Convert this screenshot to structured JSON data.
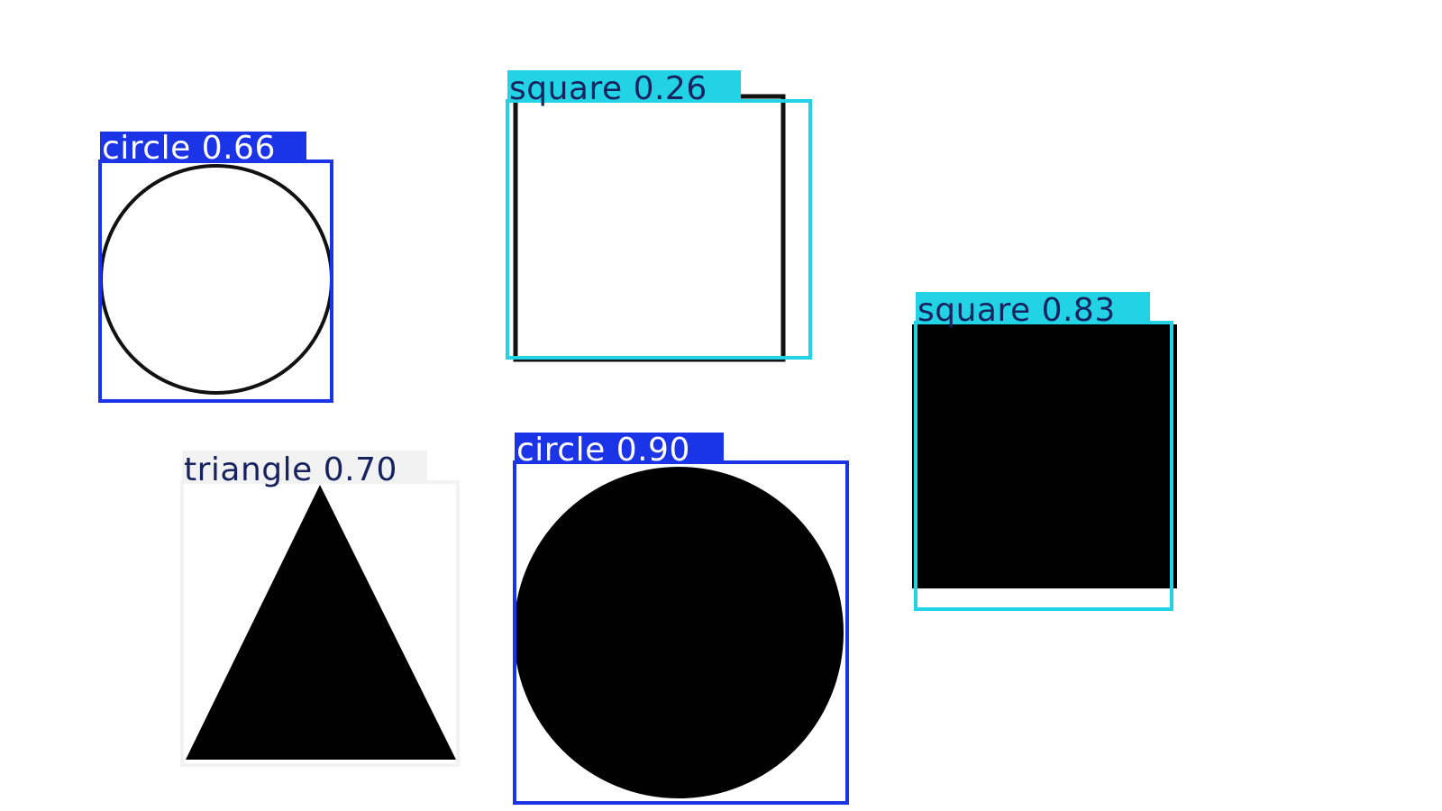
{
  "shapes": [
    {
      "type": "circle",
      "filled": false
    },
    {
      "type": "square",
      "filled": false
    },
    {
      "type": "square",
      "filled": true
    },
    {
      "type": "triangle",
      "filled": true
    },
    {
      "type": "circle",
      "filled": true
    }
  ],
  "detections": [
    {
      "label": "circle 0.66",
      "class_name": "circle",
      "confidence": 0.66,
      "box_color": "#1c34e8",
      "label_bg": "#1c34e8",
      "label_text_color": "#ffffff"
    },
    {
      "label": "square 0.26",
      "class_name": "square",
      "confidence": 0.26,
      "box_color": "#22d3e6",
      "label_bg": "#22d3e6",
      "label_text_color": "#16235e"
    },
    {
      "label": "square 0.83",
      "class_name": "square",
      "confidence": 0.83,
      "box_color": "#22d3e6",
      "label_bg": "#22d3e6",
      "label_text_color": "#16235e"
    },
    {
      "label": "triangle 0.70",
      "class_name": "triangle",
      "confidence": 0.7,
      "box_color": "#f2f2f2",
      "label_bg": "#f2f2f2",
      "label_text_color": "#16235e"
    },
    {
      "label": "circle 0.90",
      "class_name": "circle",
      "confidence": 0.9,
      "box_color": "#1c34e8",
      "label_bg": "#1c34e8",
      "label_text_color": "#ffffff"
    }
  ]
}
